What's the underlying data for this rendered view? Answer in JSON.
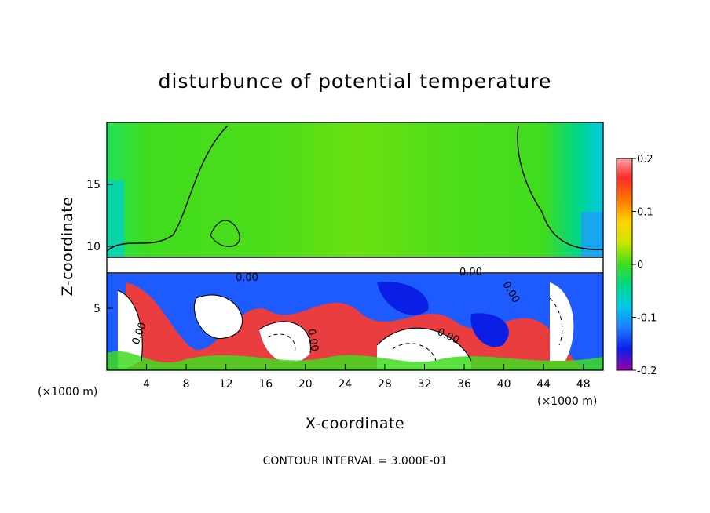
{
  "chart_data": {
    "type": "heatmap",
    "title": "disturbunce of potential temperature",
    "xlabel": "X-coordinate",
    "ylabel": "Z-coordinate",
    "x_unit": "(×1000 m)",
    "y_unit": "(×1000 m)",
    "xlim": [
      0,
      50
    ],
    "ylim": [
      0,
      20
    ],
    "x_ticks": [
      4,
      8,
      12,
      16,
      20,
      24,
      28,
      32,
      36,
      40,
      44,
      48
    ],
    "y_ticks": [
      5,
      10,
      15
    ],
    "colorbar": {
      "min": -0.2,
      "max": 0.2,
      "ticks": [
        "0.2",
        "0.1",
        "0",
        "-0.1",
        "-0.2"
      ],
      "colors": [
        "#f7a3a3",
        "#ff2a2a",
        "#ff7a00",
        "#ffd400",
        "#c8e600",
        "#3fdc1e",
        "#00d68a",
        "#00c8e6",
        "#1e7bff",
        "#0a1ee6",
        "#6a00c8",
        "#9a00a6"
      ]
    },
    "contour_labels": [
      "0.00",
      "0.00",
      "0.00",
      "0.00",
      "0.00",
      "0.00"
    ],
    "contour_interval_text": "CONTOUR INTERVAL = 3.000E-01",
    "regions": {
      "upper_layer_value": 0.02,
      "inversion_layer_value": 0.0,
      "lower_layer_range": [
        -0.2,
        0.2
      ]
    }
  }
}
